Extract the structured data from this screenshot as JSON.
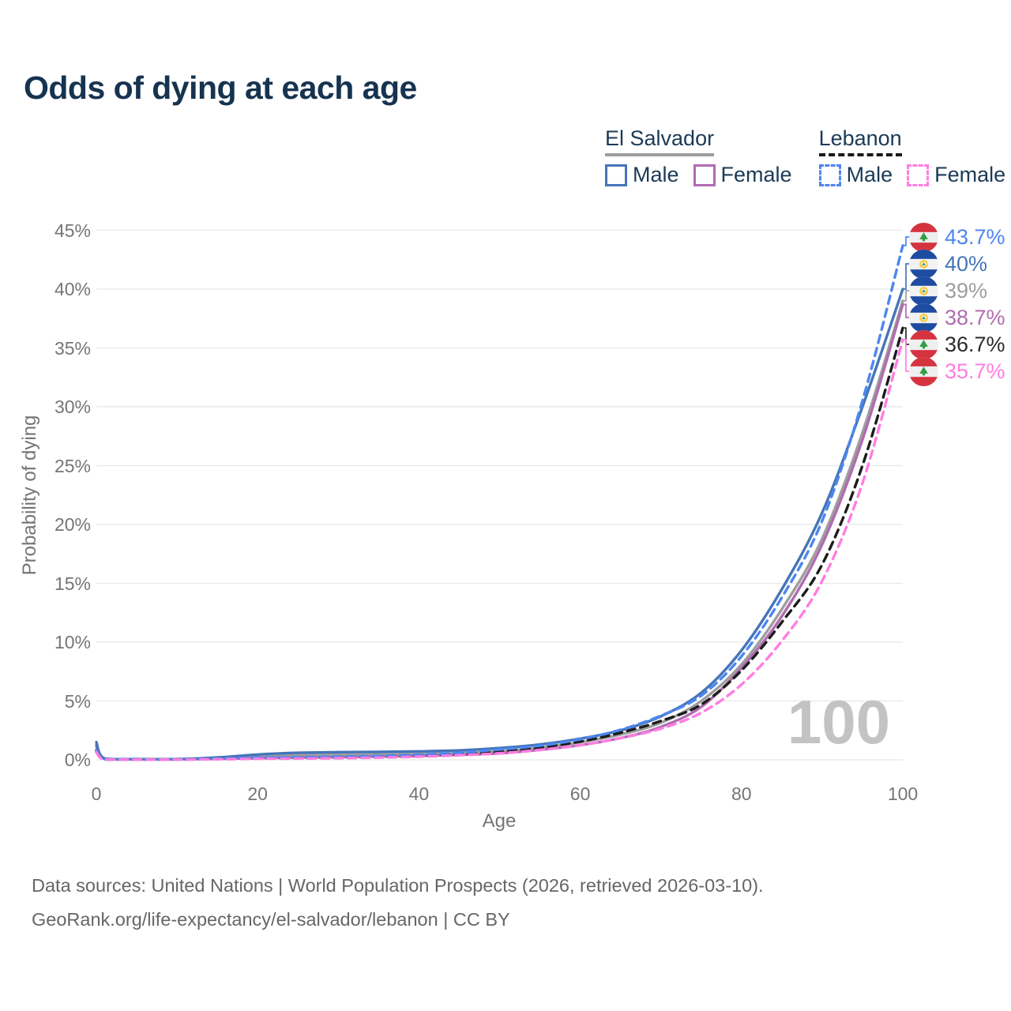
{
  "title": "Odds of dying at each age",
  "legend": {
    "groups": [
      {
        "id": "el-salvador",
        "label": "El Salvador",
        "line_style": "solid",
        "line_color": "#9e9e9e",
        "items": [
          {
            "id": "es-male",
            "label": "Male",
            "color": "#4675b8",
            "dashed": false
          },
          {
            "id": "es-female",
            "label": "Female",
            "color": "#b06cb0",
            "dashed": false
          }
        ]
      },
      {
        "id": "lebanon",
        "label": "Lebanon",
        "line_style": "dashed",
        "line_color": "#1a1a1a",
        "items": [
          {
            "id": "lb-male",
            "label": "Male",
            "color": "#4d86f0",
            "dashed": true
          },
          {
            "id": "lb-female",
            "label": "Female",
            "color": "#ff7de1",
            "dashed": true
          }
        ]
      }
    ]
  },
  "axes": {
    "y_title": "Probability of dying",
    "x_title": "Age",
    "y_ticks": [
      "45%",
      "40%",
      "35%",
      "30%",
      "25%",
      "20%",
      "15%",
      "10%",
      "5%",
      "0%"
    ],
    "x_ticks": [
      "0",
      "20",
      "40",
      "60",
      "80",
      "100"
    ]
  },
  "watermark_age": "100",
  "chart_data": {
    "type": "line",
    "title": "Odds of dying at each age",
    "xlabel": "Age",
    "ylabel": "Probability of dying",
    "xlim": [
      0,
      100
    ],
    "ylim": [
      0,
      45
    ],
    "y_unit": "%",
    "grid": "horizontal",
    "legend_position": "top-right",
    "hover_age": "100",
    "x": [
      0,
      1,
      5,
      10,
      15,
      20,
      25,
      30,
      35,
      40,
      45,
      50,
      55,
      60,
      65,
      70,
      75,
      80,
      85,
      90,
      95,
      100
    ],
    "series": [
      {
        "id": "es-both",
        "name": "El Salvador — Both sexes",
        "color": "#9e9e9e",
        "dashed": false,
        "values": [
          1.3,
          0.1,
          0.05,
          0.05,
          0.13,
          0.3,
          0.4,
          0.43,
          0.46,
          0.5,
          0.58,
          0.75,
          1.05,
          1.5,
          2.15,
          3.15,
          5.0,
          8.1,
          12.8,
          18.8,
          27.8,
          39.0
        ]
      },
      {
        "id": "es-female",
        "name": "El Salvador — Female",
        "color": "#b06cb0",
        "dashed": false,
        "values": [
          1.15,
          0.09,
          0.04,
          0.04,
          0.08,
          0.15,
          0.2,
          0.23,
          0.28,
          0.33,
          0.42,
          0.55,
          0.85,
          1.25,
          1.85,
          2.8,
          4.5,
          7.8,
          12.2,
          18.3,
          27.2,
          38.7
        ]
      },
      {
        "id": "es-male",
        "name": "El Salvador — Male",
        "color": "#4675b8",
        "dashed": false,
        "values": [
          1.5,
          0.12,
          0.06,
          0.06,
          0.2,
          0.45,
          0.6,
          0.65,
          0.68,
          0.72,
          0.8,
          1.0,
          1.3,
          1.8,
          2.5,
          3.7,
          5.7,
          9.3,
          14.5,
          21.0,
          30.0,
          40.0
        ]
      },
      {
        "id": "lb-both",
        "name": "Lebanon — Both sexes",
        "color": "#1c1c1c",
        "dashed": true,
        "values": [
          0.75,
          0.05,
          0.03,
          0.03,
          0.08,
          0.13,
          0.16,
          0.2,
          0.25,
          0.34,
          0.48,
          0.7,
          1.05,
          1.55,
          2.3,
          3.3,
          4.7,
          7.6,
          11.7,
          16.6,
          25.0,
          36.7
        ]
      },
      {
        "id": "lb-male",
        "name": "Lebanon — Male",
        "color": "#4d86f0",
        "dashed": true,
        "values": [
          0.85,
          0.06,
          0.03,
          0.03,
          0.1,
          0.18,
          0.22,
          0.27,
          0.33,
          0.43,
          0.6,
          0.88,
          1.2,
          1.75,
          2.55,
          3.75,
          5.45,
          8.8,
          13.8,
          20.3,
          30.5,
          43.7
        ]
      },
      {
        "id": "lb-female",
        "name": "Lebanon — Female",
        "color": "#ff7de1",
        "dashed": true,
        "values": [
          0.65,
          0.05,
          0.02,
          0.02,
          0.05,
          0.09,
          0.11,
          0.14,
          0.19,
          0.27,
          0.39,
          0.56,
          0.84,
          1.25,
          1.85,
          2.65,
          4.0,
          6.4,
          10.1,
          15.2,
          23.5,
          35.7
        ]
      }
    ],
    "end_labels": [
      {
        "series": "lb-male",
        "text": "43.7%",
        "value": 43.7,
        "flag": "lebanon",
        "color": "#4d86f0"
      },
      {
        "series": "es-male",
        "text": "40%",
        "value": 40,
        "flag": "el-salvador",
        "color": "#4675b8"
      },
      {
        "series": "es-both",
        "text": "39%",
        "value": 39,
        "flag": "el-salvador",
        "color": "#9e9e9e"
      },
      {
        "series": "es-female",
        "text": "38.7%",
        "value": 38.7,
        "flag": "el-salvador",
        "color": "#b06cb0"
      },
      {
        "series": "lb-both",
        "text": "36.7%",
        "value": 36.7,
        "flag": "lebanon",
        "color": "#2b2b2b"
      },
      {
        "series": "lb-female",
        "text": "35.7%",
        "value": 35.7,
        "flag": "lebanon",
        "color": "#ff7de1"
      }
    ]
  },
  "footer": {
    "line1": "Data sources: United Nations | World Population Prospects (2026, retrieved 2026-03-10).",
    "line2": "GeoRank.org/life-expectancy/el-salvador/lebanon | CC BY"
  }
}
